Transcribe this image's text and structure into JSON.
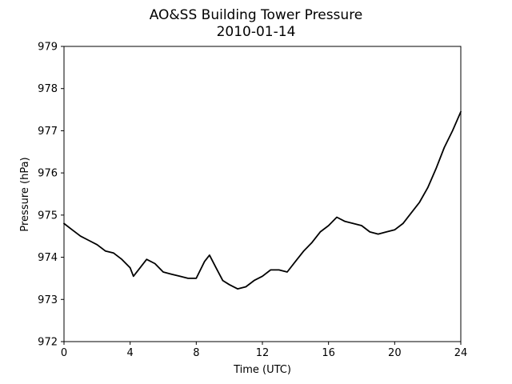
{
  "chart_data": {
    "type": "line",
    "title": "AO&SS Building Tower Pressure",
    "subtitle": "2010-01-14",
    "xlabel": "Time (UTC)",
    "ylabel": "Pressure (hPa)",
    "xlim": [
      0,
      24
    ],
    "ylim": [
      972,
      979
    ],
    "xticks": [
      0,
      4,
      8,
      12,
      16,
      20,
      24
    ],
    "yticks": [
      972,
      973,
      974,
      975,
      976,
      977,
      978,
      979
    ],
    "grid": false,
    "line_color": "#000000",
    "series": [
      {
        "x": [
          0,
          0.5,
          1,
          1.5,
          2,
          2.5,
          3,
          3.5,
          4,
          4.2,
          4.5,
          5,
          5.5,
          6,
          6.5,
          7,
          7.5,
          8,
          8.5,
          8.8,
          9.2,
          9.6,
          10,
          10.5,
          11,
          11.5,
          12,
          12.5,
          13,
          13.5,
          14,
          14.5,
          15,
          15.5,
          16,
          16.5,
          17,
          17.5,
          18,
          18.5,
          19,
          19.5,
          20,
          20.5,
          21,
          21.5,
          22,
          22.5,
          23,
          23.5,
          24
        ],
        "y": [
          974.8,
          974.65,
          974.5,
          974.4,
          974.3,
          974.15,
          974.1,
          973.95,
          973.75,
          973.55,
          973.7,
          973.95,
          973.85,
          973.65,
          973.6,
          973.55,
          973.5,
          973.5,
          973.9,
          974.05,
          973.75,
          973.45,
          973.35,
          973.25,
          973.3,
          973.45,
          973.55,
          973.7,
          973.7,
          973.65,
          973.9,
          974.15,
          974.35,
          974.6,
          974.75,
          974.95,
          974.85,
          974.8,
          974.75,
          974.6,
          974.55,
          974.6,
          974.65,
          974.8,
          975.05,
          975.3,
          975.65,
          976.1,
          976.6,
          977.0,
          977.45
        ]
      }
    ]
  }
}
